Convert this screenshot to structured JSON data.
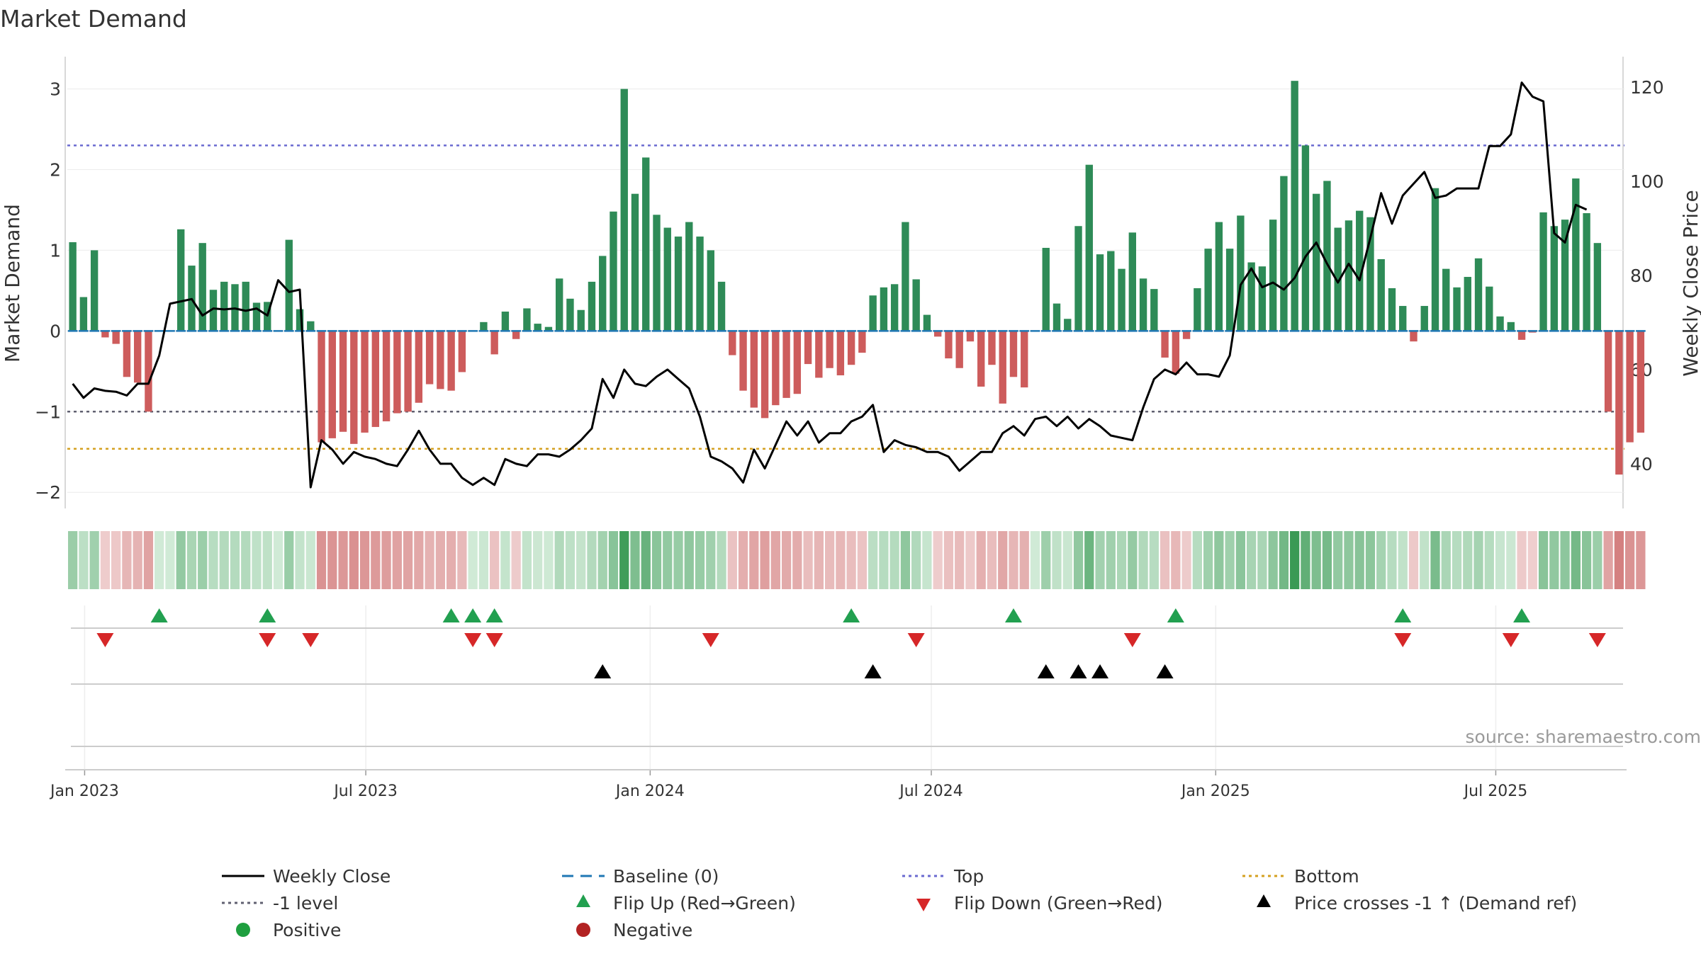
{
  "chart_data": {
    "type": "bar",
    "title": "Market Demand",
    "ylabel": "Market Demand",
    "y2label": "Weekly Close Price",
    "ylim": [
      -2.2,
      3.4
    ],
    "y2lim": [
      30.5,
      126.5
    ],
    "y_ticks": [
      3,
      2,
      1,
      0,
      -1,
      -2
    ],
    "y_tick_labels": [
      "3",
      "2",
      "1",
      "0",
      "−1",
      "−2"
    ],
    "y2_ticks": [
      120,
      100,
      80,
      60,
      40
    ],
    "y2_tick_labels": [
      "120",
      "100",
      "80",
      "60",
      "40"
    ],
    "x_tick_labels": [
      "Jan 2023",
      "Jul 2023",
      "Jan 2024",
      "Jul 2024",
      "Jan 2025",
      "Jul 2025"
    ],
    "x_tick_weeks": [
      1.1,
      27.1,
      53.4,
      79.4,
      105.7,
      131.6
    ],
    "weeks": 144,
    "levels": {
      "top": 2.3,
      "minus_one": -1,
      "bottom": -1.46,
      "baseline": 0
    },
    "demand": [
      1.1,
      0.42,
      1.0,
      -0.08,
      -0.16,
      -0.57,
      -0.64,
      -1.0,
      0,
      0,
      1.26,
      0.81,
      1.09,
      0.51,
      0.61,
      0.58,
      0.61,
      0.35,
      0.36,
      0,
      1.13,
      0.27,
      0.12,
      -1.38,
      -1.33,
      -1.25,
      -1.4,
      -1.26,
      -1.19,
      -1.12,
      -1.02,
      -1.0,
      -0.89,
      -0.66,
      -0.72,
      -0.74,
      -0.51,
      0,
      0.11,
      -0.29,
      0.24,
      -0.1,
      0.28,
      0.09,
      0.05,
      0.65,
      0.4,
      0.26,
      0.61,
      0.93,
      1.48,
      3.0,
      1.7,
      2.15,
      1.44,
      1.28,
      1.17,
      1.35,
      1.17,
      1.0,
      0.61,
      -0.3,
      -0.74,
      -0.95,
      -1.08,
      -0.92,
      -0.83,
      -0.78,
      -0.41,
      -0.58,
      -0.46,
      -0.55,
      -0.42,
      -0.27,
      0.44,
      0.54,
      0.58,
      1.35,
      0.64,
      0.2,
      -0.07,
      -0.34,
      -0.46,
      -0.13,
      -0.69,
      -0.42,
      -0.9,
      -0.57,
      -0.7,
      0,
      1.03,
      0.34,
      0.15,
      1.3,
      2.06,
      0.95,
      0.99,
      0.77,
      1.22,
      0.65,
      0.52,
      -0.33,
      -0.53,
      -0.1,
      0.53,
      1.02,
      1.35,
      1.02,
      1.43,
      0.85,
      0.8,
      1.38,
      1.92,
      3.1,
      2.3,
      1.7,
      1.86,
      1.28,
      1.37,
      1.49,
      1.41,
      0.89,
      0.53,
      0.31,
      -0.13,
      0.31,
      1.77,
      0.77,
      0.54,
      0.67,
      0.9,
      0.55,
      0.18,
      0.11,
      -0.11,
      -0.02,
      1.47,
      1.3,
      1.38,
      1.89,
      1.46,
      1.09,
      -1.0,
      -1.78,
      -1.38,
      -1.26
    ],
    "price": [
      57,
      54,
      56,
      55.5,
      55.3,
      54.5,
      57,
      57,
      63,
      74,
      74.5,
      75,
      71.5,
      73,
      72.8,
      73,
      72.5,
      73,
      71.5,
      79,
      76.5,
      77,
      35,
      45,
      43,
      40,
      42.5,
      41.5,
      41,
      40,
      39.5,
      43,
      47,
      43,
      40,
      40,
      37,
      35.5,
      37,
      35.5,
      41,
      40,
      39.5,
      42,
      42,
      41.5,
      43,
      45,
      47.5,
      58,
      54,
      60,
      57,
      56.5,
      58.5,
      60,
      58,
      56,
      50,
      41.5,
      40.5,
      39,
      36,
      43,
      39,
      44,
      49,
      46,
      49,
      44.5,
      46.5,
      46.5,
      49,
      50,
      52.5,
      42.5,
      45,
      44,
      43.5,
      42.5,
      42.5,
      41.5,
      38.5,
      40.5,
      42.5,
      42.5,
      46.5,
      48,
      46,
      49.5,
      50,
      48,
      50,
      47.5,
      49.5,
      48,
      46,
      45.5,
      45,
      52,
      58,
      60,
      59,
      61.5,
      59,
      59,
      58.5,
      63,
      78,
      81.5,
      77.5,
      78.5,
      77,
      79.5,
      84,
      87,
      82.5,
      78.5,
      82.5,
      79,
      88,
      97.5,
      91,
      97,
      99.5,
      102,
      96.5,
      97,
      98.5,
      98.5,
      98.5,
      107.5,
      107.5,
      110,
      121,
      118,
      117,
      89,
      87,
      95,
      94
    ],
    "flip_up_weeks": [
      8,
      18,
      35,
      37,
      39,
      72,
      87,
      102,
      123,
      134
    ],
    "flip_down_weeks": [
      3,
      18,
      22,
      37,
      39,
      59,
      78,
      98,
      123,
      133,
      141
    ],
    "cross_weeks": [
      49,
      74,
      90,
      93,
      95,
      101
    ],
    "source_text": "source: sharemaestro.com",
    "legend": {
      "weekly_close": "Weekly Close",
      "baseline": "Baseline (0)",
      "top": "Top",
      "bottom": "Bottom",
      "minus_one": "-1 level",
      "flip_up": "Flip Up (Red→Green)",
      "flip_down": "Flip Down (Green→Red)",
      "price_cross": "Price crosses -1 ↑ (Demand ref)",
      "positive": "Positive",
      "negative": "Negative"
    },
    "colors": {
      "positive_bar": "#2e8b57",
      "negative_bar": "#cd5c5c",
      "price_line": "#000000",
      "baseline": "#1f77b4",
      "top_line": "#6a6ad0",
      "minus_one_line": "#606070",
      "bottom_line": "#d4a020",
      "flip_up": "#22a050",
      "flip_down": "#d62728",
      "positive_dot": "#1f9f3f",
      "negative_dot": "#b22222"
    }
  }
}
